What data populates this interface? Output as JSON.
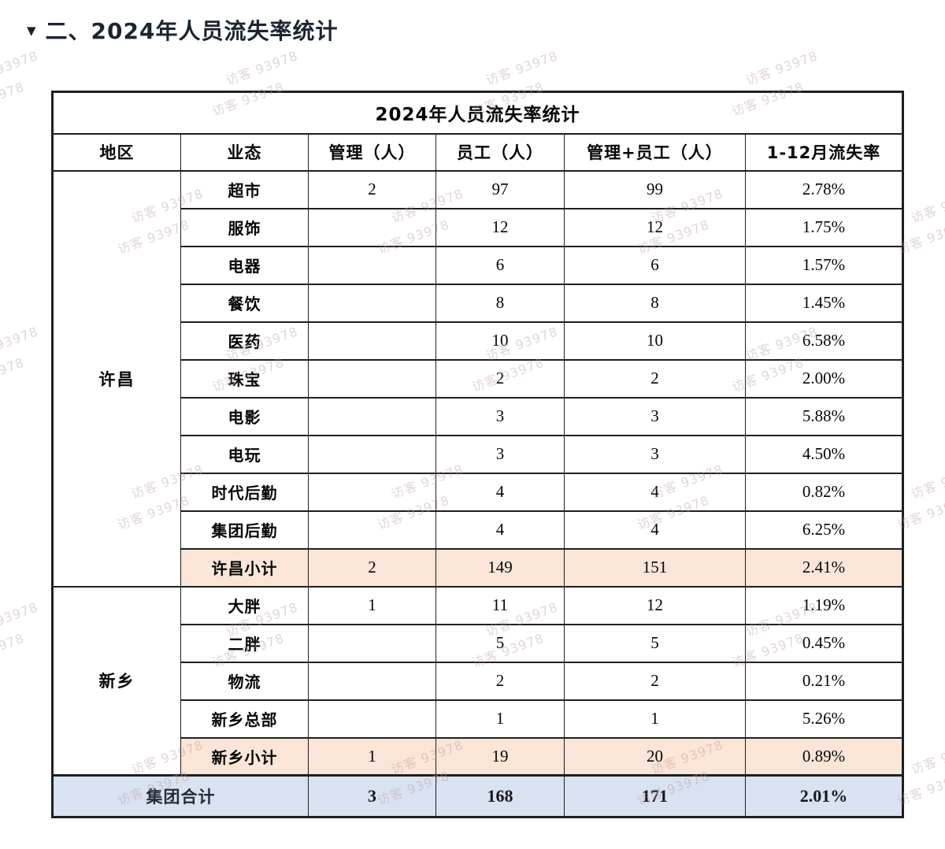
{
  "heading": {
    "collapse_marker": "▼",
    "text": "二、2024年人员流失率统计"
  },
  "watermark": {
    "text": "访客 93978"
  },
  "colors": {
    "subtotal_bg": "#fbe5d6",
    "grand_total_bg": "#d9e2f1",
    "border": "#1f1f1f",
    "watermark_text": "rgba(186,156,156,0.42)"
  },
  "table": {
    "title": "2024年人员流失率统计",
    "columns": [
      "地区",
      "业态",
      "管理（人）",
      "员工（人）",
      "管理+员工（人）",
      "1-12月流失率"
    ],
    "regions": [
      {
        "name": "许昌",
        "rows": [
          {
            "label": "超市",
            "management": "2",
            "staff": "97",
            "total": "99",
            "rate": "2.78%",
            "is_subtotal": false
          },
          {
            "label": "服饰",
            "management": "",
            "staff": "12",
            "total": "12",
            "rate": "1.75%",
            "is_subtotal": false
          },
          {
            "label": "电器",
            "management": "",
            "staff": "6",
            "total": "6",
            "rate": "1.57%",
            "is_subtotal": false
          },
          {
            "label": "餐饮",
            "management": "",
            "staff": "8",
            "total": "8",
            "rate": "1.45%",
            "is_subtotal": false
          },
          {
            "label": "医药",
            "management": "",
            "staff": "10",
            "total": "10",
            "rate": "6.58%",
            "is_subtotal": false
          },
          {
            "label": "珠宝",
            "management": "",
            "staff": "2",
            "total": "2",
            "rate": "2.00%",
            "is_subtotal": false
          },
          {
            "label": "电影",
            "management": "",
            "staff": "3",
            "total": "3",
            "rate": "5.88%",
            "is_subtotal": false
          },
          {
            "label": "电玩",
            "management": "",
            "staff": "3",
            "total": "3",
            "rate": "4.50%",
            "is_subtotal": false
          },
          {
            "label": "时代后勤",
            "management": "",
            "staff": "4",
            "total": "4",
            "rate": "0.82%",
            "is_subtotal": false
          },
          {
            "label": "集团后勤",
            "management": "",
            "staff": "4",
            "total": "4",
            "rate": "6.25%",
            "is_subtotal": false
          },
          {
            "label": "许昌小计",
            "management": "2",
            "staff": "149",
            "total": "151",
            "rate": "2.41%",
            "is_subtotal": true
          }
        ]
      },
      {
        "name": "新乡",
        "rows": [
          {
            "label": "大胖",
            "management": "1",
            "staff": "11",
            "total": "12",
            "rate": "1.19%",
            "is_subtotal": false
          },
          {
            "label": "二胖",
            "management": "",
            "staff": "5",
            "total": "5",
            "rate": "0.45%",
            "is_subtotal": false
          },
          {
            "label": "物流",
            "management": "",
            "staff": "2",
            "total": "2",
            "rate": "0.21%",
            "is_subtotal": false
          },
          {
            "label": "新乡总部",
            "management": "",
            "staff": "1",
            "total": "1",
            "rate": "5.26%",
            "is_subtotal": false
          },
          {
            "label": "新乡小计",
            "management": "1",
            "staff": "19",
            "total": "20",
            "rate": "0.89%",
            "is_subtotal": true
          }
        ]
      }
    ],
    "grand_total": {
      "label": "集团合计",
      "management": "3",
      "staff": "168",
      "total": "171",
      "rate": "2.01%"
    }
  }
}
